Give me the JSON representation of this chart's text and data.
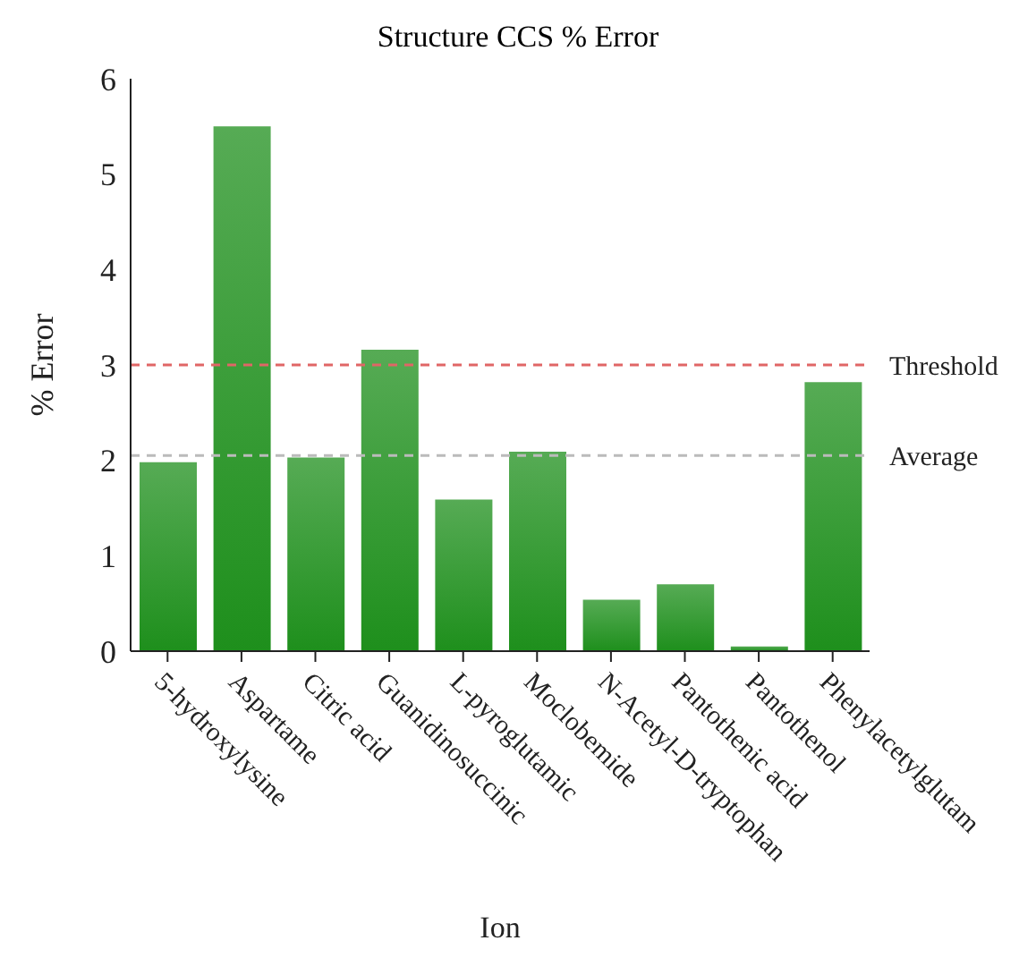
{
  "chart_data": {
    "type": "bar",
    "title": "Structure CCS % Error",
    "xlabel": "Ion",
    "ylabel": "% Error",
    "categories": [
      "5-hydroxylysine",
      "Aspartame",
      "Citric acid",
      "Guanidinosuccinic",
      "L-pyroglutamic",
      "Moclobemide",
      "N-Acetyl-D-tryptophan",
      "Pantothenic acid",
      "Pantothenol",
      "Phenylacetylglutam"
    ],
    "values": [
      1.98,
      5.5,
      2.03,
      3.16,
      1.59,
      2.09,
      0.54,
      0.7,
      0.05,
      2.82
    ],
    "color": "#1e8f1c",
    "ylim": [
      0,
      6
    ],
    "yticks": [
      0,
      1,
      2,
      3,
      4,
      5,
      6
    ],
    "grid": false,
    "legend": false,
    "ref_lines": [
      {
        "axis": "y",
        "value": 3,
        "label": "Threshold",
        "color": "#e06666",
        "line_style": "dashed"
      },
      {
        "axis": "y",
        "value": 2.05,
        "label": "Average",
        "color": "#bbbbbb",
        "line_style": "dashed"
      }
    ]
  }
}
